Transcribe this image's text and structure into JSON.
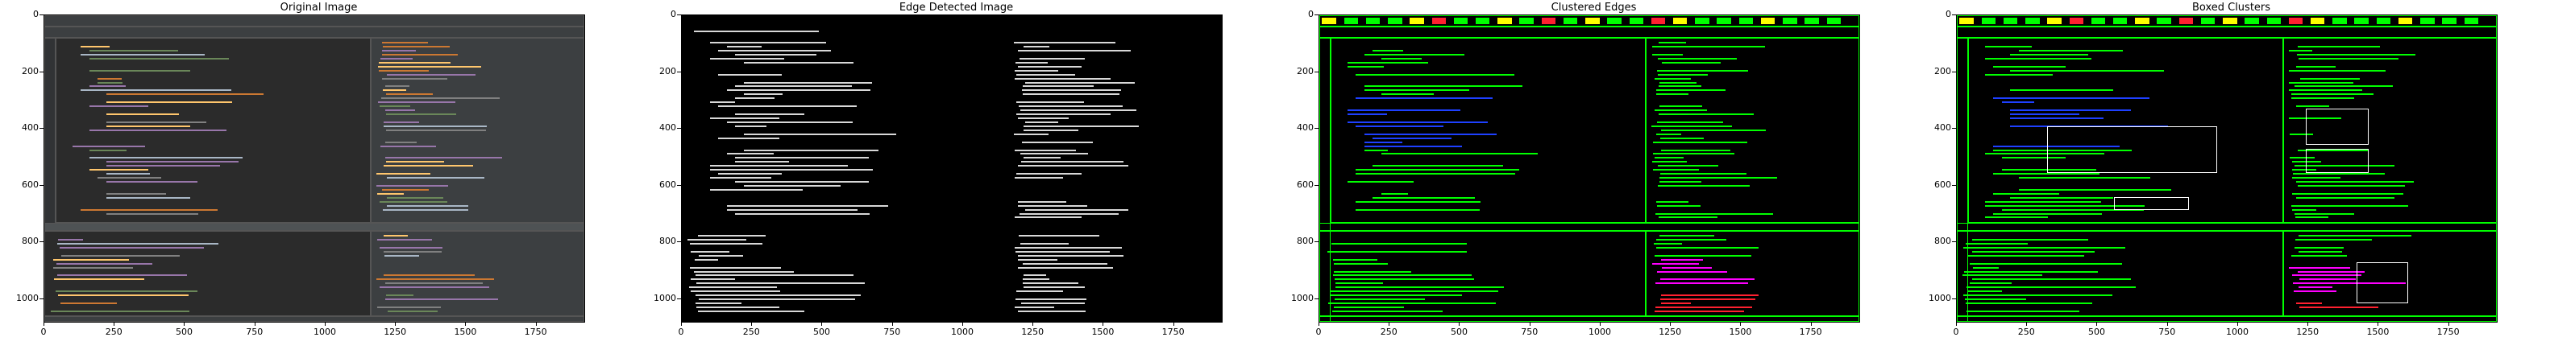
{
  "panels": [
    {
      "title": "Original Image",
      "kind": "original"
    },
    {
      "title": "Edge Detected Image",
      "kind": "edges"
    },
    {
      "title": "Clustered Edges",
      "kind": "clustered"
    },
    {
      "title": "Boxed Clusters",
      "kind": "boxed"
    }
  ],
  "axes": {
    "x_ticks": [
      "0",
      "250",
      "500",
      "750",
      "1000",
      "1250",
      "1500",
      "1750"
    ],
    "y_ticks": [
      "0",
      "200",
      "400",
      "600",
      "800",
      "1000"
    ],
    "x_max": 1920,
    "y_max": 1080
  },
  "colors": {
    "ide_bg": "#2b2b2b",
    "cluster_green": "#00ff00",
    "cluster_blue": "#1e40ff",
    "cluster_magenta": "#ff00ff",
    "cluster_red": "#ff2030",
    "cluster_yellow": "#ffff00",
    "box_red": "#ff0000"
  }
}
